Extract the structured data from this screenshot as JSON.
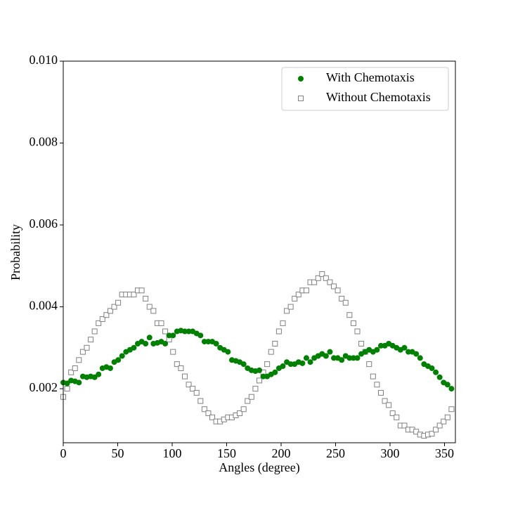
{
  "chart_data": {
    "type": "scatter",
    "xlabel": "Angles (degree)",
    "ylabel": "Probability",
    "x": [
      0,
      3.6,
      7.2,
      10.8,
      14.4,
      18,
      21.6,
      25.2,
      28.8,
      32.4,
      36,
      39.6,
      43.2,
      46.8,
      50.4,
      54,
      57.6,
      61.2,
      64.8,
      68.4,
      72,
      75.6,
      79.2,
      82.8,
      86.4,
      90,
      93.6,
      97.2,
      100.8,
      104.4,
      108,
      111.6,
      115.2,
      118.8,
      122.4,
      126,
      129.6,
      133.2,
      136.8,
      140.4,
      144,
      147.6,
      151.2,
      154.8,
      158.4,
      162,
      165.6,
      169.2,
      172.8,
      176.4,
      180,
      183.6,
      187.2,
      190.8,
      194.4,
      198,
      201.6,
      205.2,
      208.8,
      212.4,
      216,
      219.6,
      223.2,
      226.8,
      230.4,
      234,
      237.6,
      241.2,
      244.8,
      248.4,
      252,
      255.6,
      259.2,
      262.8,
      266.4,
      270,
      273.6,
      277.2,
      280.8,
      284.4,
      288,
      291.6,
      295.2,
      298.8,
      302.4,
      306,
      309.6,
      313.2,
      316.8,
      320.4,
      324,
      327.6,
      331.2,
      334.8,
      338.4,
      342,
      345.6,
      349.2,
      352.8,
      356.4
    ],
    "series": [
      {
        "name": "With Chemotaxis",
        "color": "#008000",
        "marker": "o",
        "values": [
          0.00215,
          0.00213,
          0.0022,
          0.00218,
          0.00215,
          0.0023,
          0.00228,
          0.0023,
          0.00228,
          0.00235,
          0.0025,
          0.00253,
          0.0025,
          0.00265,
          0.0027,
          0.0028,
          0.0029,
          0.00295,
          0.003,
          0.0031,
          0.00315,
          0.0031,
          0.00325,
          0.0031,
          0.00312,
          0.00315,
          0.0031,
          0.0033,
          0.0033,
          0.0034,
          0.00342,
          0.0034,
          0.0034,
          0.0034,
          0.00335,
          0.0033,
          0.00315,
          0.00315,
          0.00315,
          0.0031,
          0.003,
          0.00295,
          0.0029,
          0.0027,
          0.00268,
          0.00265,
          0.0026,
          0.0025,
          0.00245,
          0.00243,
          0.00245,
          0.0023,
          0.0023,
          0.00235,
          0.0024,
          0.0025,
          0.00255,
          0.00265,
          0.0026,
          0.0026,
          0.00265,
          0.00262,
          0.00275,
          0.00265,
          0.00275,
          0.0028,
          0.00285,
          0.0028,
          0.0029,
          0.00275,
          0.00275,
          0.0027,
          0.0028,
          0.00275,
          0.00275,
          0.00275,
          0.00285,
          0.0029,
          0.00295,
          0.0029,
          0.00295,
          0.00305,
          0.00305,
          0.0031,
          0.00305,
          0.003,
          0.00295,
          0.003,
          0.0029,
          0.0029,
          0.00285,
          0.00275,
          0.0026,
          0.00255,
          0.0025,
          0.0024,
          0.00228,
          0.00215,
          0.0021,
          0.002
        ]
      },
      {
        "name": "Without Chemotaxis",
        "color": "#808080",
        "marker": "s",
        "values": [
          0.0018,
          0.002,
          0.0024,
          0.0025,
          0.0027,
          0.0029,
          0.003,
          0.0032,
          0.0034,
          0.0036,
          0.0037,
          0.0038,
          0.0039,
          0.004,
          0.0041,
          0.0043,
          0.0043,
          0.0043,
          0.0043,
          0.0044,
          0.0044,
          0.0042,
          0.004,
          0.0039,
          0.0036,
          0.0036,
          0.0034,
          0.0032,
          0.0029,
          0.0026,
          0.0025,
          0.0023,
          0.0021,
          0.002,
          0.0019,
          0.0017,
          0.0015,
          0.0014,
          0.0013,
          0.0012,
          0.0012,
          0.00125,
          0.0013,
          0.0013,
          0.00135,
          0.0014,
          0.0015,
          0.0017,
          0.0018,
          0.002,
          0.0022,
          0.0024,
          0.0026,
          0.0029,
          0.0031,
          0.0034,
          0.0036,
          0.0039,
          0.004,
          0.0042,
          0.0043,
          0.0044,
          0.0044,
          0.0046,
          0.0046,
          0.0047,
          0.0048,
          0.0047,
          0.0046,
          0.0045,
          0.0044,
          0.0042,
          0.0041,
          0.0038,
          0.0036,
          0.0034,
          0.0031,
          0.0029,
          0.0026,
          0.0023,
          0.0021,
          0.0019,
          0.0017,
          0.0016,
          0.0014,
          0.0013,
          0.0011,
          0.0011,
          0.001,
          0.001,
          0.00095,
          0.00088,
          0.00085,
          0.00088,
          0.0009,
          0.001,
          0.0011,
          0.0012,
          0.0013,
          0.0015
        ]
      }
    ],
    "xlim": [
      0,
      360
    ],
    "xticks": [
      0,
      50,
      100,
      150,
      200,
      250,
      300,
      350
    ],
    "ylim": [
      0.00068,
      0.01
    ],
    "yticks": [
      0.002,
      0.004,
      0.006,
      0.008,
      {
        "value": 0.01,
        "label": "0.010"
      }
    ],
    "legend": "upper right"
  }
}
